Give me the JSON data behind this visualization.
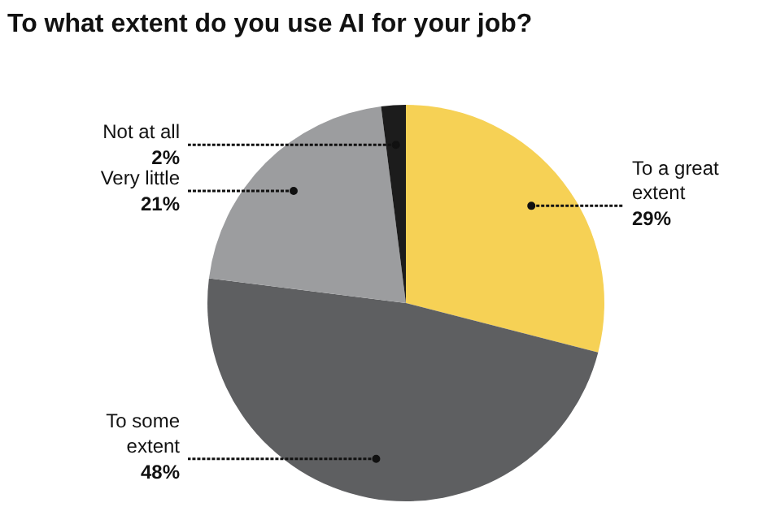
{
  "chart_data": {
    "type": "pie",
    "title": "To what extent do you use AI for your job?",
    "categories": [
      "To a great extent",
      "To some extent",
      "Very little",
      "Not at all"
    ],
    "values": [
      29,
      48,
      21,
      2
    ],
    "value_labels": [
      "29%",
      "48%",
      "21%",
      "2%"
    ],
    "colors": [
      "#f6d155",
      "#5e5f61",
      "#9c9d9f",
      "#1c1c1c"
    ]
  }
}
